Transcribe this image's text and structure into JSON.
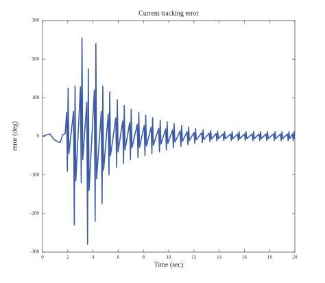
{
  "chart_data": {
    "type": "line",
    "title": "Current tracking error",
    "xlabel": "Time (sec)",
    "ylabel": "error (deg)",
    "x": [
      0,
      0.3,
      0.6,
      0.9,
      1.2,
      1.4,
      1.6,
      1.8,
      1.91,
      1.97,
      2.03,
      2.09,
      2.46,
      2.52,
      2.58,
      2.64,
      3.01,
      3.07,
      3.13,
      3.19,
      3.51,
      3.57,
      3.63,
      3.69,
      4.11,
      4.17,
      4.23,
      4.29,
      4.66,
      4.72,
      4.78,
      4.84,
      5.21,
      5.27,
      5.33,
      5.39,
      5.81,
      5.87,
      5.93,
      5.99,
      6.36,
      6.42,
      6.48,
      6.54,
      6.91,
      6.97,
      7.03,
      7.09,
      7.51,
      7.57,
      7.63,
      7.69,
      8.06,
      8.12,
      8.18,
      8.24,
      8.61,
      8.67,
      8.73,
      8.79,
      9.21,
      9.27,
      9.33,
      9.39,
      9.76,
      9.82,
      9.88,
      9.94,
      10.31,
      10.37,
      10.43,
      10.49,
      10.91,
      10.97,
      11.03,
      11.09,
      11.46,
      11.52,
      11.58,
      11.64,
      12.01,
      12.07,
      12.13,
      12.19,
      12.61,
      12.67,
      12.73,
      12.79,
      13.21,
      13.27,
      13.33,
      13.39,
      13.76,
      13.82,
      13.88,
      13.94,
      14.31,
      14.37,
      14.43,
      14.49,
      14.91,
      14.97,
      15.03,
      15.09,
      15.46,
      15.52,
      15.58,
      15.64,
      16.01,
      16.07,
      16.13,
      16.19,
      16.61,
      16.67,
      16.73,
      16.79,
      17.16,
      17.22,
      17.28,
      17.34,
      17.71,
      17.77,
      17.83,
      17.89,
      18.31,
      18.37,
      18.43,
      18.49,
      18.86,
      18.92,
      18.98,
      19.04,
      19.41,
      19.47,
      19.53,
      19.59,
      19.81,
      19.87,
      19.93,
      19.99
    ],
    "series": [
      {
        "color": "#3a5ba8",
        "values": [
          0,
          4,
          6,
          -8,
          -14,
          -16,
          4,
          8,
          62,
          -90,
          125,
          -45,
          65,
          -230,
          130,
          -115,
          128,
          -120,
          255,
          -60,
          88,
          -280,
          175,
          -140,
          120,
          -220,
          240,
          -110,
          65,
          -175,
          130,
          -88,
          58,
          -100,
          115,
          -50,
          48,
          -80,
          95,
          -40,
          40,
          -70,
          80,
          -35,
          35,
          -60,
          70,
          -30,
          31,
          -55,
          62,
          -28,
          28,
          -50,
          55,
          -25,
          24,
          -45,
          48,
          -23,
          21,
          -40,
          42,
          -20,
          19,
          -35,
          38,
          -18,
          17,
          -30,
          33,
          -15,
          14,
          -26,
          28,
          -13,
          12,
          -22,
          24,
          -11,
          10,
          -18,
          20,
          -9,
          9,
          -16,
          17,
          -8,
          8,
          -14,
          15,
          -7,
          7,
          -12,
          13,
          -6,
          6,
          -11,
          12,
          -6,
          6,
          -11,
          12,
          -6,
          6,
          -11,
          12,
          -6,
          6,
          -11,
          12,
          -6,
          6,
          -11,
          12,
          -6,
          6,
          -11,
          12,
          -6,
          6,
          -11,
          12,
          -6,
          6,
          -11,
          12,
          -6,
          6,
          -11,
          12,
          -6,
          6,
          -11,
          12,
          -6,
          6,
          -11,
          12,
          -6
        ]
      }
    ],
    "xlim": [
      0,
      20
    ],
    "xticks": [
      0,
      2,
      4,
      6,
      8,
      10,
      12,
      14,
      16,
      18,
      20
    ],
    "ylim": [
      -300,
      300
    ],
    "yticks": [
      -300,
      -200,
      -100,
      0,
      100,
      200,
      300
    ]
  }
}
